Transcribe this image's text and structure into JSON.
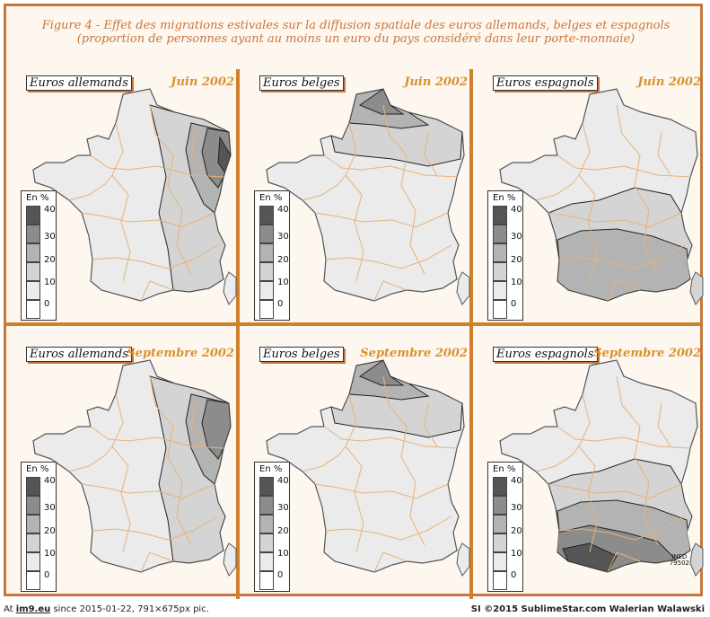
{
  "figure": {
    "title_line1": "Figure 4 - Effet des migrations estivales sur la diffusion spatiale des euros allemands, belges et espagnols",
    "title_line2": "(proportion de personnes ayant au moins un euro du pays considéré dans leur porte-monnaie)"
  },
  "colors": {
    "frame": "#c8773c",
    "divider": "#d07f2a",
    "date": "#d9922e",
    "region_border": "#e8b27a",
    "class_0": "#ffffff",
    "class_10": "#ebebeb",
    "class_20": "#d4d4d4",
    "class_30": "#b3b3b3",
    "class_40": "#8c8c8c",
    "class_max": "#555555"
  },
  "legend": {
    "title": "En %",
    "ticks": [
      "40",
      "30",
      "20",
      "10",
      "0"
    ]
  },
  "panels": [
    {
      "currency": "Euros allemands",
      "date": "Juin 2002",
      "hotspot": "northeast",
      "strength": 0.9
    },
    {
      "currency": "Euros belges",
      "date": "Juin 2002",
      "hotspot": "north",
      "strength": 0.8
    },
    {
      "currency": "Euros espagnols",
      "date": "Juin 2002",
      "hotspot": "south",
      "strength": 0.6
    },
    {
      "currency": "Euros allemands",
      "date": "Septembre 2002",
      "hotspot": "northeast",
      "strength": 0.85
    },
    {
      "currency": "Euros belges",
      "date": "Septembre 2002",
      "hotspot": "north",
      "strength": 0.8
    },
    {
      "currency": "Euros espagnols",
      "date": "Septembre 2002",
      "hotspot": "south",
      "strength": 0.95
    }
  ],
  "credit": {
    "line1": "INED",
    "line2": "79502"
  },
  "footer": {
    "prefix": "At ",
    "site": "im9.eu",
    "suffix": " since 2015-01-22, 791×675px pic.",
    "right": "SI ©2015 SublimeStar.com Walerian Walawski"
  }
}
